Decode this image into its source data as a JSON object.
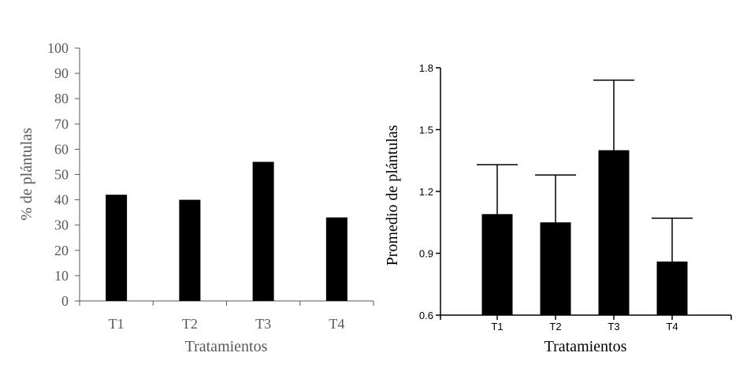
{
  "chart_data": [
    {
      "type": "bar",
      "categories": [
        "T1",
        "T2",
        "T3",
        "T4"
      ],
      "values": [
        42,
        40,
        55,
        33
      ],
      "xlabel": "Tratamientos",
      "ylabel": "% de plántulas",
      "ylim": [
        0,
        100
      ],
      "yticks": [
        "0",
        "10",
        "20",
        "30",
        "40",
        "50",
        "60",
        "70",
        "80",
        "90",
        "100"
      ],
      "grid": false,
      "legend": "none",
      "colors": {
        "bar": "#000000",
        "axis": "#595959",
        "text": "#595959"
      }
    },
    {
      "type": "bar",
      "categories": [
        "T1",
        "T2",
        "T3",
        "T4"
      ],
      "values": [
        1.09,
        1.05,
        1.4,
        0.86
      ],
      "error_upper": [
        1.33,
        1.28,
        1.74,
        1.07
      ],
      "xlabel": "Tratamientos",
      "ylabel": "Promedio de plántulas",
      "ylim": [
        0.6,
        1.8
      ],
      "yticks": [
        "0.6",
        "0.9",
        "1.2",
        "1.5",
        "1.8"
      ],
      "grid": false,
      "legend": "none",
      "colors": {
        "bar": "#000000",
        "axis": "#000000",
        "text": "#000000"
      }
    }
  ]
}
